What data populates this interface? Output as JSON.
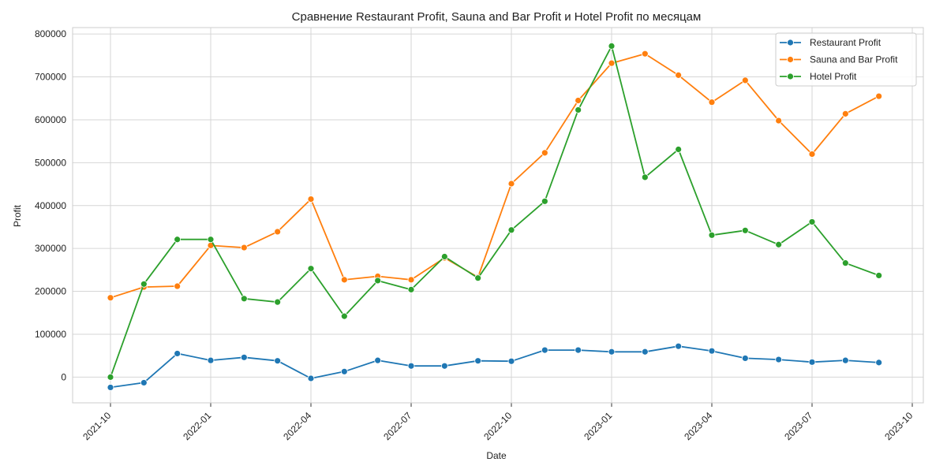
{
  "chart_data": {
    "type": "line",
    "title": "Сравнение Restaurant Profit, Sauna and Bar Profit и Hotel Profit по месяцам",
    "xlabel": "Date",
    "ylabel": "Profit",
    "x": [
      "2021-10",
      "2021-11",
      "2021-12",
      "2022-01",
      "2022-02",
      "2022-03",
      "2022-04",
      "2022-05",
      "2022-06",
      "2022-07",
      "2022-08",
      "2022-09",
      "2022-10",
      "2022-11",
      "2022-12",
      "2023-01",
      "2023-02",
      "2023-03",
      "2023-04",
      "2023-05",
      "2023-06",
      "2023-07",
      "2023-08",
      "2023-09"
    ],
    "x_tick_labels": [
      "2021-10",
      "2022-01",
      "2022-04",
      "2022-07",
      "2022-10",
      "2023-01",
      "2023-04",
      "2023-07",
      "2023-10"
    ],
    "y_tick_labels": [
      "0",
      "100000",
      "200000",
      "300000",
      "400000",
      "500000",
      "600000",
      "700000",
      "800000"
    ],
    "ylim": [
      -60000,
      815000
    ],
    "grid": true,
    "legend_position": "top-right",
    "series": [
      {
        "name": "Restaurant Profit",
        "color": "#1f77b4",
        "values": [
          -24000,
          -13000,
          55000,
          39000,
          46000,
          38000,
          -3000,
          13000,
          39000,
          26000,
          26000,
          38000,
          37000,
          63000,
          63000,
          59000,
          59000,
          72000,
          61000,
          44000,
          41000,
          35000,
          39000,
          34000
        ]
      },
      {
        "name": "Sauna and Bar Profit",
        "color": "#ff7f0e",
        "values": [
          185000,
          210000,
          212000,
          307000,
          302000,
          339000,
          415000,
          227000,
          235000,
          227000,
          278000,
          233000,
          451000,
          523000,
          645000,
          732000,
          754000,
          704000,
          641000,
          692000,
          598000,
          520000,
          614000,
          655000
        ]
      },
      {
        "name": "Hotel Profit",
        "color": "#2ca02c",
        "values": [
          0,
          217000,
          321000,
          321000,
          183000,
          175000,
          253000,
          142000,
          225000,
          204000,
          281000,
          231000,
          343000,
          410000,
          623000,
          772000,
          466000,
          531000,
          331000,
          342000,
          309000,
          362000,
          266000,
          237000
        ]
      }
    ]
  }
}
